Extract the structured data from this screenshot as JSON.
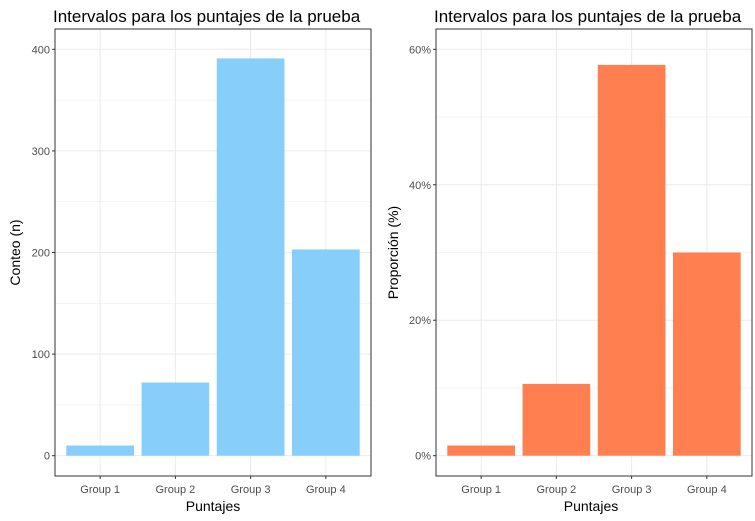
{
  "chart_data": [
    {
      "type": "bar",
      "title": "Intervalos para los puntajes de la prueba",
      "xlabel": "Puntajes",
      "ylabel": "Conteo (n)",
      "categories": [
        "Group 1",
        "Group 2",
        "Group 3",
        "Group 4"
      ],
      "values": [
        10,
        72,
        391,
        203
      ],
      "ylim": [
        0,
        400
      ],
      "yticks": [
        0,
        100,
        200,
        300,
        400
      ],
      "ytick_labels": [
        "0",
        "100",
        "200",
        "300",
        "400"
      ],
      "color": "#87CEFA",
      "grid": true,
      "legend": "none"
    },
    {
      "type": "bar",
      "title": "Intervalos para los puntajes de la prueba",
      "xlabel": "Puntajes",
      "ylabel": "Proporción (%)",
      "categories": [
        "Group 1",
        "Group 2",
        "Group 3",
        "Group 4"
      ],
      "values": [
        1.5,
        10.6,
        57.7,
        30.0
      ],
      "ylim": [
        0,
        60
      ],
      "yticks": [
        0,
        20,
        40,
        60
      ],
      "ytick_labels": [
        "0%",
        "20%",
        "40%",
        "60%"
      ],
      "color": "#FF7F50",
      "grid": true,
      "legend": "none"
    }
  ]
}
